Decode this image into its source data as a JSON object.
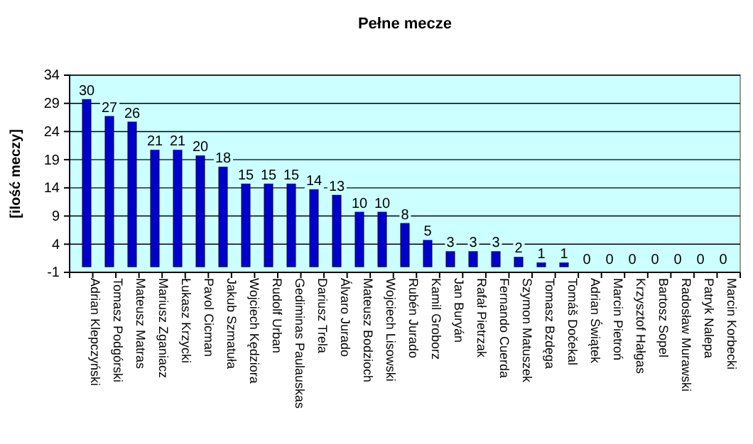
{
  "chart_data": {
    "type": "bar",
    "title": "Pełne mecze",
    "ylabel": "[ilość meczy]",
    "categories": [
      "Adrian Klepczyński",
      "Tomasz Podgórski",
      "Mateusz Matras",
      "Mariusz Zganiacz",
      "Łukasz Krzycki",
      "Pavol Cicman",
      "Jakub Szmatuła",
      "Wojciech Kędziora",
      "Rudolf Urban",
      "Gediminas Paulauskas",
      "Dariusz Trela",
      "Álvaro Jurado",
      "Mateusz Bodzioch",
      "Wojciech Lisowski",
      "Rubén Jurado",
      "Kamil Groborz",
      "Jan Buryán",
      "Rafał Pietrzak",
      "Fernando Cuerda",
      "Szymon Matuszek",
      "Tomasz Bzdęga",
      "Tomáš Dočekal",
      "Adrian Świątek",
      "Marcin Pietroń",
      "Krzysztof Hałgas",
      "Bartosz Sopel",
      "Radosław Murawski",
      "Patryk Nalepa",
      "Marcin Korbecki"
    ],
    "values": [
      30,
      27,
      26,
      21,
      21,
      20,
      18,
      15,
      15,
      15,
      14,
      13,
      10,
      10,
      8,
      5,
      3,
      3,
      3,
      2,
      1,
      1,
      0,
      0,
      0,
      0,
      0,
      0,
      0
    ],
    "color": "#0000cc",
    "ylim": [
      -1,
      34
    ],
    "yticks": [
      -1,
      4,
      9,
      14,
      19,
      24,
      29,
      34
    ],
    "grid": "y",
    "data_labels": true
  }
}
